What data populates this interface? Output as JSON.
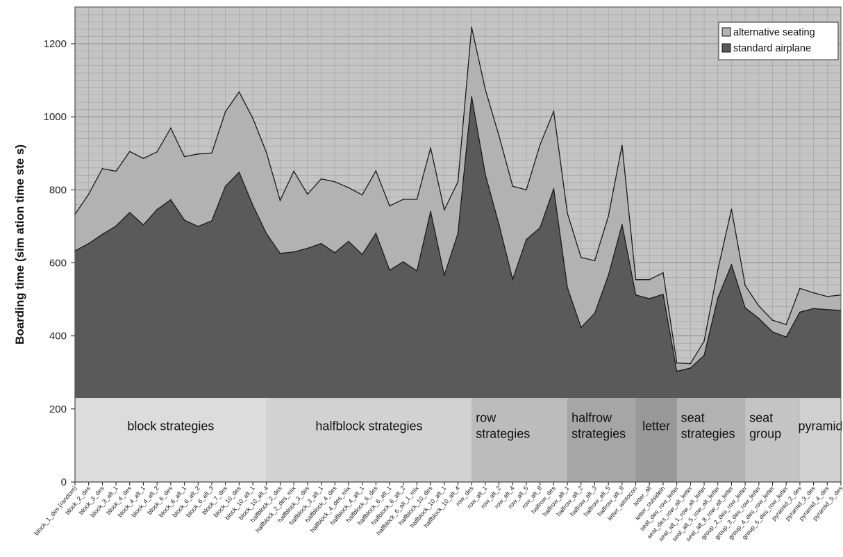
{
  "chart_data": {
    "type": "area",
    "ylabel": "Boarding time (sim    ation time ste  s)",
    "ylim": [
      0,
      1300
    ],
    "yticks": [
      0,
      200,
      400,
      600,
      800,
      1000,
      1200
    ],
    "grid": true,
    "legend_position": "top-right",
    "categories": [
      "block_1_des (random)",
      "block_2_des",
      "block_3_des",
      "block_3_alt_1",
      "block_4_des",
      "block_4_alt_1",
      "block_4_alt_2",
      "block_6_des",
      "block_6_alt_1",
      "block_6_alt_2",
      "block_6_alt_3",
      "block_7_des",
      "block_10_des",
      "block_10_alt_1",
      "block_10_alt_4",
      "halfblock_2_des",
      "halfblock_2_des_mix",
      "halfblock_3_des",
      "halfblock_3_alt_1",
      "halfblock_4_des",
      "halfblock_4_des_mix",
      "halfblock_4_alt_1",
      "halfblock_6_des",
      "halfblock_6_alt_1",
      "halfblock_6_alt_2",
      "halfblock_6_alt_1_mix",
      "halfblock_10_des",
      "halfblock_10_alt_1",
      "halfblock_10_alt_4",
      "row_des",
      "row_alt_1",
      "row_alt_2",
      "row_alt_4",
      "row_alt_5",
      "row_alt_8",
      "halfrow_des",
      "halfrow_alt_1",
      "halfrow_alt_2",
      "halfrow_alt_3",
      "halfrow_alt_5",
      "halfrow_alt_8",
      "letter_wintocorr",
      "letter_all",
      "letter_outsidein",
      "seat_des_row_letter",
      "seat_des_row_alt_letter",
      "seat_alt_1_row_alt_letter",
      "seat_alt_5_row_alt_letter",
      "seat_alt_8_row_alt_letter",
      "group_2_des_row_letter",
      "group_3_des_row_letter",
      "group_4_des_row_letter",
      "group_5_des_row_letter",
      "pyramid_2_des",
      "pyramid_3_des",
      "pyramid_4_des",
      "pyramid_5_des"
    ],
    "series": [
      {
        "name": "alternative seating",
        "color": "#b2b2b2",
        "values": [
          733,
          788,
          858,
          851,
          905,
          886,
          904,
          969,
          891,
          898,
          901,
          1014,
          1068,
          996,
          902,
          771,
          851,
          788,
          830,
          822,
          806,
          786,
          852,
          756,
          774,
          774,
          915,
          745,
          822,
          1245,
          1075,
          948,
          810,
          800,
          923,
          1015,
          736,
          615,
          606,
          728,
          922,
          554,
          554,
          573,
          326,
          324,
          386,
          581,
          747,
          538,
          482,
          443,
          431,
          530,
          518,
          508,
          512
        ]
      },
      {
        "name": "standard airplane",
        "color": "#5a5a5a",
        "values": [
          633,
          653,
          678,
          701,
          738,
          704,
          746,
          773,
          717,
          700,
          715,
          810,
          848,
          758,
          680,
          626,
          630,
          640,
          653,
          628,
          659,
          623,
          681,
          580,
          603,
          578,
          741,
          566,
          681,
          1055,
          842,
          705,
          555,
          664,
          696,
          803,
          533,
          423,
          462,
          566,
          705,
          512,
          502,
          514,
          303,
          312,
          347,
          504,
          595,
          477,
          448,
          411,
          397,
          465,
          475,
          472,
          470
        ]
      }
    ],
    "groups": [
      {
        "label": "block strategies",
        "start": 0,
        "end": 14,
        "color": "#dcdcdc"
      },
      {
        "label": "halfblock strategies",
        "start": 14,
        "end": 29,
        "color": "#d2d2d2"
      },
      {
        "label": "row strategies",
        "start": 29,
        "end": 36,
        "color": "#bcbcbc"
      },
      {
        "label": "halfrow strategies",
        "start": 36,
        "end": 41,
        "color": "#a6a6a6"
      },
      {
        "label": "letter",
        "start": 41,
        "end": 44,
        "color": "#989898"
      },
      {
        "label": "seat strategies",
        "start": 44,
        "end": 49,
        "color": "#b2b2b2"
      },
      {
        "label": "seat group",
        "start": 49,
        "end": 53,
        "color": "#c4c4c4"
      },
      {
        "label": "pyramid",
        "start": 53,
        "end": 57,
        "color": "#d0d0d0"
      }
    ]
  }
}
